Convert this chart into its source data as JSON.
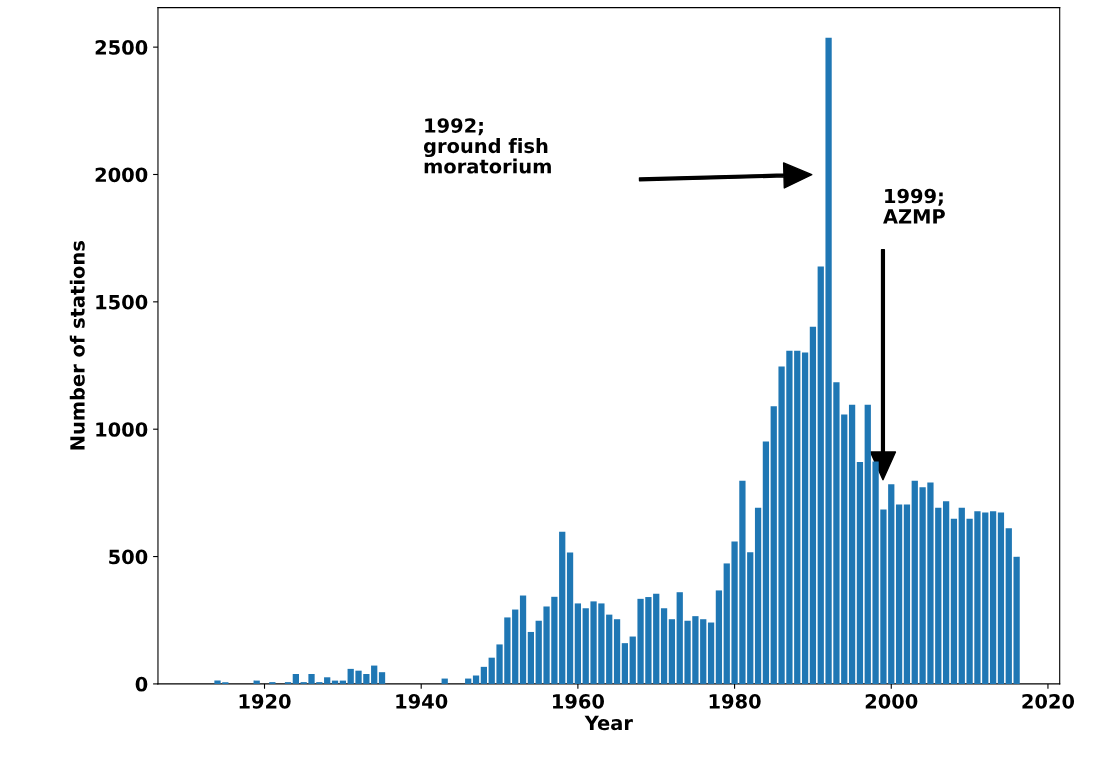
{
  "chart_data": {
    "type": "bar",
    "xlabel": "Year",
    "ylabel": "Number of stations",
    "color": "#1f77b4",
    "x": [
      1914,
      1915,
      1919,
      1921,
      1923,
      1924,
      1925,
      1926,
      1927,
      1928,
      1929,
      1930,
      1931,
      1932,
      1933,
      1934,
      1935,
      1943,
      1946,
      1947,
      1948,
      1949,
      1950,
      1951,
      1952,
      1953,
      1954,
      1955,
      1956,
      1957,
      1958,
      1959,
      1960,
      1961,
      1962,
      1963,
      1964,
      1965,
      1966,
      1967,
      1968,
      1969,
      1970,
      1971,
      1972,
      1973,
      1974,
      1975,
      1976,
      1977,
      1978,
      1979,
      1980,
      1981,
      1982,
      1983,
      1984,
      1985,
      1986,
      1987,
      1988,
      1989,
      1990,
      1991,
      1992,
      1993,
      1994,
      1995,
      1996,
      1997,
      1998,
      1999,
      2000,
      2001,
      2002,
      2003,
      2004,
      2005,
      2006,
      2007,
      2008,
      2009,
      2010,
      2011,
      2012,
      2013,
      2014,
      2015,
      2016
    ],
    "values": [
      13,
      7,
      13,
      7,
      7,
      39,
      7,
      39,
      7,
      26,
      13,
      13,
      59,
      52,
      39,
      72,
      46,
      21,
      21,
      33,
      67,
      103,
      155,
      261,
      292,
      347,
      204,
      248,
      304,
      342,
      597,
      516,
      316,
      297,
      324,
      316,
      272,
      254,
      160,
      186,
      334,
      341,
      354,
      297,
      254,
      360,
      248,
      266,
      254,
      241,
      367,
      473,
      559,
      798,
      517,
      692,
      952,
      1090,
      1246,
      1308,
      1308,
      1301,
      1402,
      1639,
      2537,
      1184,
      1058,
      1096,
      871,
      1096,
      873,
      685,
      784,
      704,
      704,
      798,
      772,
      791,
      692,
      717,
      648,
      692,
      648,
      678,
      673,
      678,
      673,
      611,
      499
    ],
    "xlim": [
      1906.4,
      2021.5
    ],
    "ylim": [
      0,
      2655
    ],
    "xticks": [
      1920,
      1940,
      1960,
      1980,
      2000,
      2020
    ],
    "yticks": [
      0,
      500,
      1000,
      1500,
      2000,
      2500
    ],
    "grid": false,
    "annotations": [
      "1992;\nground fish\nmoratorium",
      "1999;\nAZMP"
    ]
  }
}
